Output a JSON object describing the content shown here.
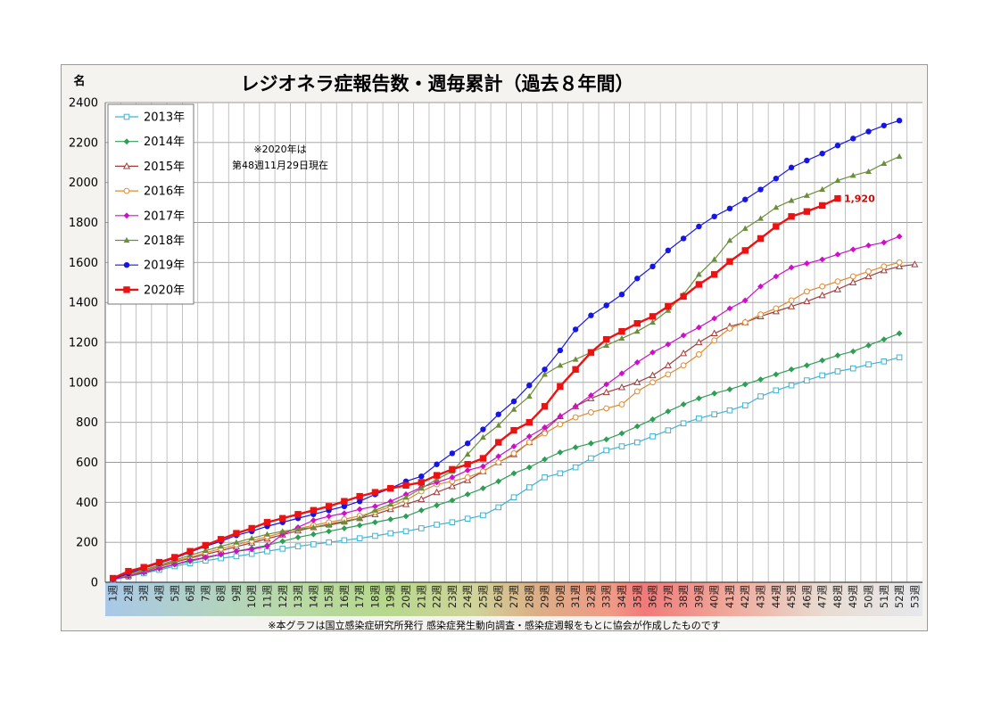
{
  "chart_data": {
    "type": "line",
    "title": "レジオネラ症報告数・週毎累計（過去８年間）",
    "unit_label": "名",
    "note_lines": [
      "※2020年は",
      "第48週11月29日現在"
    ],
    "source_note": "※本グラフは国立感染症研究所発行 感染症発生動向調査・感染症週報をもとに協会が作成したものです",
    "ylim": [
      0,
      2400
    ],
    "yticks": [
      0,
      200,
      400,
      600,
      800,
      1000,
      1200,
      1400,
      1600,
      1800,
      2000,
      2200,
      2400
    ],
    "grid": true,
    "legend_position": "top-left",
    "x_labels": [
      "1週",
      "2週",
      "3週",
      "4週",
      "5週",
      "6週",
      "7週",
      "8週",
      "9週",
      "10週",
      "11週",
      "12週",
      "13週",
      "14週",
      "15週",
      "16週",
      "17週",
      "18週",
      "19週",
      "20週",
      "21週",
      "22週",
      "23週",
      "24週",
      "25週",
      "26週",
      "27週",
      "28週",
      "29週",
      "30週",
      "31週",
      "32週",
      "33週",
      "34週",
      "35週",
      "36週",
      "37週",
      "38週",
      "39週",
      "40週",
      "41週",
      "42週",
      "43週",
      "44週",
      "45週",
      "46週",
      "47週",
      "48週",
      "49週",
      "50週",
      "51週",
      "52週",
      "53週"
    ],
    "last_value_label": "1,920",
    "series": [
      {
        "name": "2013年",
        "color": "#3cb4d2",
        "marker": "square-open",
        "values": [
          12,
          28,
          45,
          62,
          80,
          95,
          108,
          120,
          130,
          142,
          155,
          168,
          180,
          190,
          200,
          210,
          220,
          232,
          245,
          255,
          270,
          288,
          300,
          318,
          335,
          375,
          425,
          475,
          525,
          545,
          575,
          620,
          660,
          680,
          700,
          730,
          760,
          795,
          820,
          840,
          860,
          885,
          930,
          960,
          985,
          1010,
          1035,
          1055,
          1070,
          1090,
          1105,
          1125
        ]
      },
      {
        "name": "2014年",
        "color": "#2e9e55",
        "marker": "diamond",
        "values": [
          15,
          30,
          48,
          68,
          88,
          105,
          122,
          138,
          155,
          170,
          185,
          205,
          225,
          240,
          255,
          270,
          285,
          300,
          315,
          330,
          360,
          385,
          410,
          440,
          470,
          505,
          545,
          575,
          615,
          650,
          675,
          695,
          715,
          745,
          780,
          815,
          855,
          890,
          920,
          945,
          965,
          990,
          1015,
          1040,
          1065,
          1085,
          1110,
          1135,
          1155,
          1185,
          1215,
          1245
        ]
      },
      {
        "name": "2015年",
        "color": "#a03c3c",
        "marker": "triangle-open",
        "values": [
          16,
          34,
          55,
          78,
          100,
          120,
          140,
          158,
          178,
          198,
          218,
          238,
          258,
          275,
          290,
          305,
          320,
          340,
          365,
          390,
          415,
          450,
          480,
          510,
          555,
          600,
          640,
          700,
          760,
          830,
          880,
          920,
          950,
          975,
          1000,
          1035,
          1085,
          1145,
          1200,
          1245,
          1280,
          1300,
          1330,
          1355,
          1380,
          1405,
          1435,
          1465,
          1500,
          1530,
          1560,
          1580,
          1590
        ]
      },
      {
        "name": "2016年",
        "color": "#e08a30",
        "marker": "circle-open",
        "values": [
          18,
          36,
          58,
          82,
          105,
          125,
          148,
          168,
          188,
          208,
          228,
          248,
          268,
          285,
          300,
          315,
          332,
          352,
          378,
          410,
          455,
          490,
          505,
          525,
          555,
          600,
          645,
          700,
          745,
          790,
          825,
          850,
          870,
          890,
          955,
          1000,
          1040,
          1085,
          1140,
          1210,
          1270,
          1300,
          1340,
          1370,
          1410,
          1455,
          1480,
          1505,
          1530,
          1555,
          1580,
          1600
        ]
      },
      {
        "name": "2017年",
        "color": "#cc10c8",
        "marker": "diamond",
        "values": [
          15,
          30,
          50,
          70,
          90,
          110,
          125,
          140,
          155,
          165,
          180,
          240,
          275,
          310,
          330,
          345,
          365,
          380,
          405,
          440,
          475,
          500,
          525,
          560,
          580,
          630,
          680,
          730,
          775,
          830,
          880,
          935,
          990,
          1045,
          1100,
          1150,
          1190,
          1235,
          1275,
          1320,
          1370,
          1410,
          1480,
          1530,
          1575,
          1595,
          1615,
          1640,
          1665,
          1685,
          1700,
          1730
        ]
      },
      {
        "name": "2018年",
        "color": "#6b8e3a",
        "marker": "triangle",
        "values": [
          20,
          40,
          62,
          86,
          110,
          135,
          158,
          180,
          200,
          220,
          240,
          255,
          265,
          275,
          285,
          300,
          320,
          360,
          390,
          425,
          470,
          515,
          555,
          640,
          725,
          785,
          865,
          930,
          1040,
          1085,
          1115,
          1150,
          1185,
          1220,
          1255,
          1300,
          1360,
          1440,
          1540,
          1615,
          1710,
          1770,
          1820,
          1875,
          1910,
          1935,
          1965,
          2010,
          2035,
          2055,
          2095,
          2130
        ]
      },
      {
        "name": "2019年",
        "color": "#1515e6",
        "marker": "circle",
        "values": [
          15,
          45,
          70,
          95,
          120,
          150,
          180,
          205,
          235,
          255,
          280,
          300,
          320,
          340,
          360,
          380,
          405,
          440,
          470,
          505,
          530,
          590,
          645,
          695,
          765,
          840,
          905,
          985,
          1065,
          1160,
          1265,
          1335,
          1385,
          1440,
          1520,
          1580,
          1660,
          1720,
          1780,
          1830,
          1870,
          1915,
          1965,
          2020,
          2075,
          2110,
          2145,
          2185,
          2220,
          2255,
          2285,
          2310
        ]
      },
      {
        "name": "2020年",
        "color": "#ee1111",
        "marker": "square",
        "values": [
          20,
          55,
          75,
          100,
          125,
          155,
          185,
          215,
          245,
          270,
          300,
          320,
          340,
          360,
          380,
          405,
          430,
          450,
          470,
          485,
          500,
          535,
          565,
          590,
          620,
          700,
          760,
          800,
          880,
          980,
          1065,
          1150,
          1215,
          1255,
          1295,
          1330,
          1380,
          1430,
          1490,
          1540,
          1605,
          1660,
          1720,
          1780,
          1830,
          1855,
          1885,
          1920
        ]
      }
    ]
  }
}
